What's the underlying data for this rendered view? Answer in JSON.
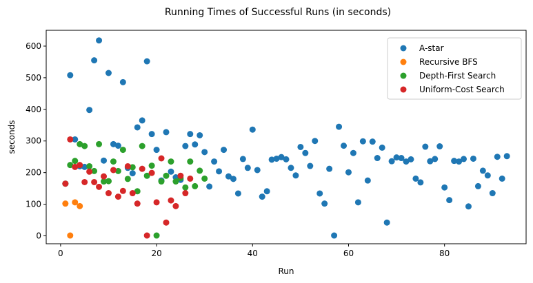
{
  "chart_data": {
    "type": "scatter",
    "title": "Running Times of Successful Runs (in seconds)",
    "xlabel": "Run",
    "ylabel": "seconds",
    "xlim": [
      -3,
      97
    ],
    "ylim": [
      -25,
      650
    ],
    "xticks": [
      0,
      20,
      40,
      60,
      80
    ],
    "yticks": [
      0,
      100,
      200,
      300,
      400,
      500,
      600
    ],
    "grid": false,
    "legend_position": "top-right",
    "series": [
      {
        "name": "A-star",
        "color": "#1f77b4",
        "points": [
          [
            1,
            165
          ],
          [
            2,
            508
          ],
          [
            3,
            305
          ],
          [
            4,
            220
          ],
          [
            5,
            218
          ],
          [
            6,
            398
          ],
          [
            7,
            555
          ],
          [
            8,
            618
          ],
          [
            9,
            238
          ],
          [
            10,
            515
          ],
          [
            11,
            290
          ],
          [
            12,
            285
          ],
          [
            13,
            486
          ],
          [
            14,
            215
          ],
          [
            15,
            198
          ],
          [
            16,
            343
          ],
          [
            17,
            365
          ],
          [
            18,
            552
          ],
          [
            19,
            322
          ],
          [
            20,
            272
          ],
          [
            21,
            175
          ],
          [
            22,
            328
          ],
          [
            23,
            203
          ],
          [
            24,
            185
          ],
          [
            25,
            177
          ],
          [
            26,
            284
          ],
          [
            27,
            322
          ],
          [
            28,
            289
          ],
          [
            29,
            318
          ],
          [
            30,
            265
          ],
          [
            31,
            156
          ],
          [
            32,
            235
          ],
          [
            33,
            204
          ],
          [
            34,
            272
          ],
          [
            35,
            188
          ],
          [
            36,
            180
          ],
          [
            37,
            134
          ],
          [
            38,
            243
          ],
          [
            39,
            215
          ],
          [
            40,
            336
          ],
          [
            41,
            208
          ],
          [
            42,
            124
          ],
          [
            43,
            141
          ],
          [
            44,
            241
          ],
          [
            45,
            244
          ],
          [
            46,
            249
          ],
          [
            47,
            242
          ],
          [
            48,
            215
          ],
          [
            49,
            191
          ],
          [
            50,
            281
          ],
          [
            51,
            262
          ],
          [
            52,
            221
          ],
          [
            53,
            300
          ],
          [
            54,
            134
          ],
          [
            55,
            102
          ],
          [
            56,
            212
          ],
          [
            57,
            1
          ],
          [
            58,
            345
          ],
          [
            59,
            285
          ],
          [
            60,
            201
          ],
          [
            61,
            262
          ],
          [
            62,
            106
          ],
          [
            63,
            299
          ],
          [
            64,
            175
          ],
          [
            65,
            298
          ],
          [
            66,
            246
          ],
          [
            67,
            279
          ],
          [
            68,
            42
          ],
          [
            69,
            236
          ],
          [
            70,
            248
          ],
          [
            71,
            246
          ],
          [
            72,
            235
          ],
          [
            73,
            242
          ],
          [
            74,
            181
          ],
          [
            75,
            169
          ],
          [
            76,
            282
          ],
          [
            77,
            236
          ],
          [
            78,
            243
          ],
          [
            79,
            283
          ],
          [
            80,
            153
          ],
          [
            81,
            113
          ],
          [
            82,
            237
          ],
          [
            83,
            235
          ],
          [
            84,
            243
          ],
          [
            85,
            93
          ],
          [
            86,
            244
          ],
          [
            87,
            157
          ],
          [
            88,
            206
          ],
          [
            89,
            191
          ],
          [
            90,
            135
          ],
          [
            91,
            250
          ],
          [
            92,
            181
          ],
          [
            93,
            252
          ]
        ]
      },
      {
        "name": "Recursive BFS",
        "color": "#ff7f0e",
        "points": [
          [
            1,
            102
          ],
          [
            2,
            1
          ],
          [
            3,
            106
          ],
          [
            4,
            94
          ]
        ]
      },
      {
        "name": "Depth-First Search",
        "color": "#2ca02c",
        "points": [
          [
            1,
            165
          ],
          [
            2,
            224
          ],
          [
            3,
            237
          ],
          [
            4,
            290
          ],
          [
            5,
            284
          ],
          [
            6,
            220
          ],
          [
            7,
            205
          ],
          [
            8,
            290
          ],
          [
            9,
            172
          ],
          [
            10,
            173
          ],
          [
            11,
            235
          ],
          [
            12,
            205
          ],
          [
            13,
            272
          ],
          [
            14,
            180
          ],
          [
            15,
            217
          ],
          [
            16,
            141
          ],
          [
            17,
            284
          ],
          [
            18,
            190
          ],
          [
            19,
            222
          ],
          [
            20,
            1
          ],
          [
            21,
            172
          ],
          [
            22,
            190
          ],
          [
            23,
            235
          ],
          [
            24,
            172
          ],
          [
            25,
            183
          ],
          [
            26,
            153
          ],
          [
            27,
            235
          ],
          [
            28,
            157
          ],
          [
            29,
            206
          ],
          [
            30,
            181
          ]
        ]
      },
      {
        "name": "Uniform-Cost Search",
        "color": "#d62728",
        "points": [
          [
            1,
            165
          ],
          [
            2,
            305
          ],
          [
            3,
            218
          ],
          [
            4,
            224
          ],
          [
            5,
            170
          ],
          [
            6,
            203
          ],
          [
            7,
            170
          ],
          [
            8,
            155
          ],
          [
            9,
            188
          ],
          [
            10,
            135
          ],
          [
            11,
            208
          ],
          [
            12,
            124
          ],
          [
            13,
            142
          ],
          [
            14,
            220
          ],
          [
            15,
            135
          ],
          [
            16,
            102
          ],
          [
            17,
            212
          ],
          [
            18,
            1
          ],
          [
            19,
            199
          ],
          [
            20,
            106
          ],
          [
            21,
            245
          ],
          [
            22,
            42
          ],
          [
            23,
            112
          ],
          [
            24,
            94
          ],
          [
            25,
            190
          ],
          [
            26,
            135
          ],
          [
            27,
            181
          ]
        ]
      }
    ]
  }
}
